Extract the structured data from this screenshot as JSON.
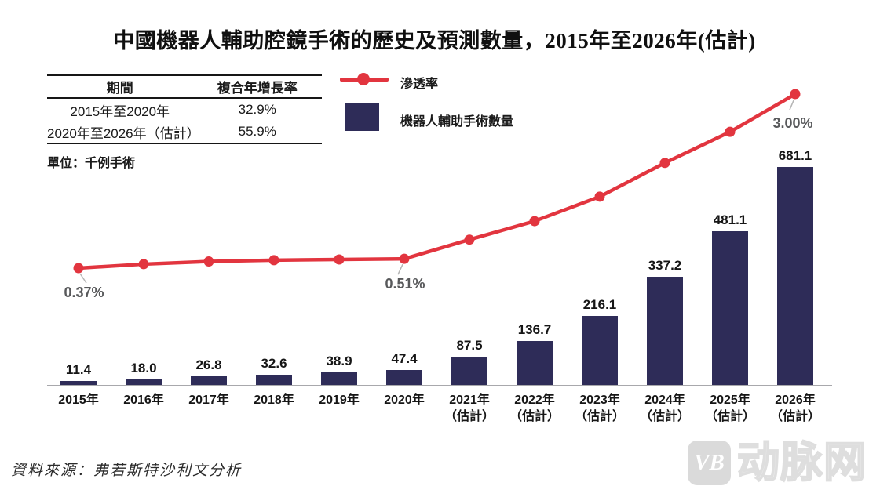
{
  "title": "中國機器人輔助腔鏡手術的歷史及預測數量，2015年至2026年(估計)",
  "cagr_table": {
    "headers": [
      "期間",
      "複合年增長率"
    ],
    "rows": [
      {
        "period": "2015年至2020年",
        "cagr": "32.9%"
      },
      {
        "period": "2020年至2026年（估計）",
        "cagr": "55.9%"
      }
    ]
  },
  "unit_label": "單位：千例手術",
  "legend": {
    "line_label": "滲透率",
    "bar_label": "機器人輔助手術數量",
    "line_color": "#e2353f",
    "bar_color": "#2e2c58"
  },
  "chart_data": {
    "type": "combo-bar-line",
    "categories": [
      "2015年",
      "2016年",
      "2017年",
      "2018年",
      "2019年",
      "2020年",
      "2021年（估計）",
      "2022年（估計）",
      "2023年（估計）",
      "2024年（估計）",
      "2025年（估計）",
      "2026年（估計）"
    ],
    "category_lines": [
      [
        "2015年"
      ],
      [
        "2016年"
      ],
      [
        "2017年"
      ],
      [
        "2018年"
      ],
      [
        "2019年"
      ],
      [
        "2020年"
      ],
      [
        "2021年",
        "（估計）"
      ],
      [
        "2022年",
        "（估計）"
      ],
      [
        "2023年",
        "（估計）"
      ],
      [
        "2024年",
        "（估計）"
      ],
      [
        "2025年",
        "（估計）"
      ],
      [
        "2026年",
        "（估計）"
      ]
    ],
    "series": [
      {
        "name": "機器人輔助手術數量",
        "type": "bar",
        "unit": "千例手術",
        "color": "#2e2c58",
        "values": [
          11.4,
          18.0,
          26.8,
          32.6,
          38.9,
          47.4,
          87.5,
          136.7,
          216.1,
          337.2,
          481.1,
          681.1
        ]
      },
      {
        "name": "滲透率",
        "type": "line",
        "unit": "%",
        "color": "#e2353f",
        "values": [
          0.37,
          0.43,
          0.47,
          0.49,
          0.5,
          0.51,
          0.8,
          1.08,
          1.45,
          1.96,
          2.43,
          3.0
        ],
        "note": "only three points carry data labels; remaining values estimated from line position",
        "point_labels": [
          {
            "index": 0,
            "text": "0.37%"
          },
          {
            "index": 5,
            "text": "0.51%"
          },
          {
            "index": 11,
            "text": "3.00%"
          }
        ]
      }
    ],
    "legend_position": "top-left",
    "grid": false
  },
  "source": "資料來源：弗若斯特沙利文分析",
  "watermark": {
    "logo": "VB",
    "text": "动脉网"
  }
}
